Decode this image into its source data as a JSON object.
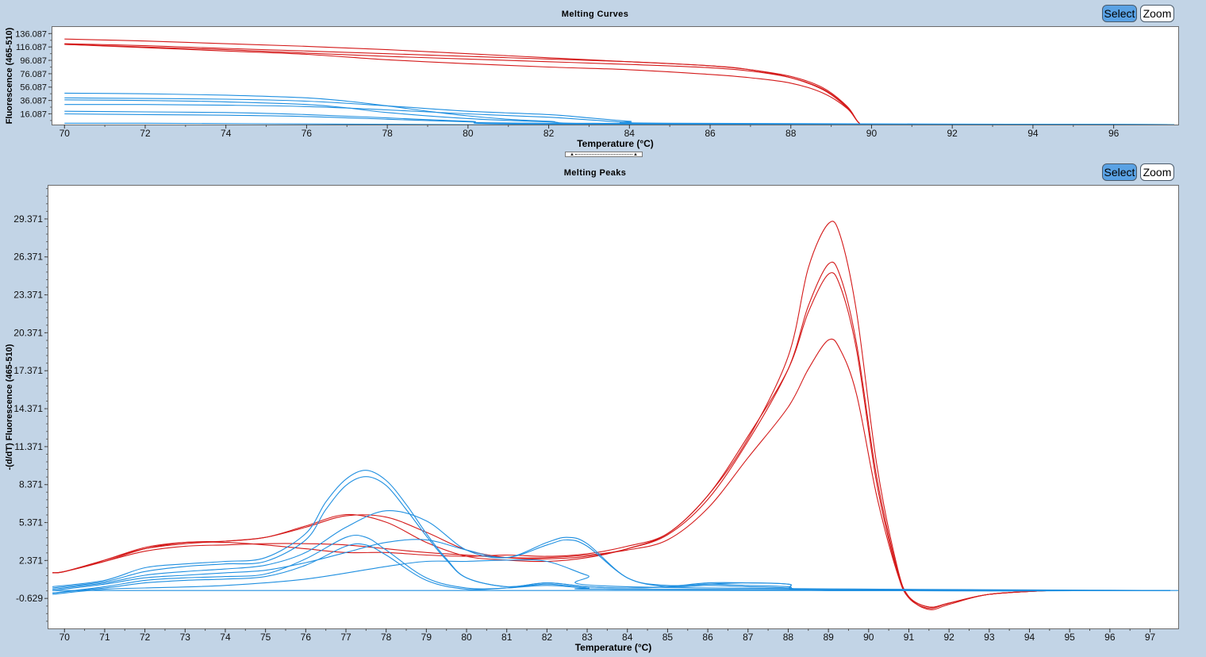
{
  "toolbar": {
    "select_label": "Select",
    "zoom_label": "Zoom"
  },
  "colors": {
    "red": "#d41a1a",
    "blue": "#1f8fe0",
    "background": "#c2d4e6"
  },
  "chart_data": [
    {
      "type": "line",
      "title": "Melting Curves",
      "xlabel": "Temperature (°C)",
      "ylabel": "Fluorescence (465-510)",
      "xlim": [
        69.7,
        97.6
      ],
      "ylim": [
        0,
        146
      ],
      "xticks": [
        70,
        72,
        74,
        76,
        78,
        80,
        82,
        84,
        86,
        88,
        90,
        92,
        94,
        96
      ],
      "yticks": [
        "136.087",
        "116.087",
        "96.087",
        "76.087",
        "56.087",
        "36.087",
        "16.087"
      ],
      "ytick_values": [
        136.087,
        116.087,
        96.087,
        76.087,
        56.087,
        36.087,
        16.087
      ],
      "grid": false,
      "series": [
        {
          "color": "#d41a1a",
          "x": [
            70,
            72,
            74,
            76,
            78,
            80,
            82,
            84,
            86,
            87,
            88,
            88.8,
            89.4,
            89.7,
            90,
            97.5
          ],
          "y": [
            128,
            125,
            121,
            117,
            112,
            106,
            100,
            94,
            88,
            82,
            70,
            52,
            25,
            2,
            0,
            0
          ]
        },
        {
          "color": "#d41a1a",
          "x": [
            70,
            72,
            74,
            76,
            78,
            80,
            82,
            84,
            86,
            87,
            88,
            88.8,
            89.4,
            89.7,
            90,
            97.5
          ],
          "y": [
            121,
            118,
            114,
            110,
            106,
            102,
            98,
            94,
            88,
            82,
            72,
            55,
            27,
            2,
            0,
            0
          ]
        },
        {
          "color": "#d41a1a",
          "x": [
            70,
            72,
            74,
            76,
            78,
            80,
            82,
            84,
            86,
            87,
            88,
            88.8,
            89.4,
            89.7,
            90,
            97.5
          ],
          "y": [
            120,
            116,
            112,
            107,
            102,
            98,
            94,
            90,
            85,
            80,
            70,
            53,
            26,
            2,
            0,
            0
          ]
        },
        {
          "color": "#d41a1a",
          "x": [
            70,
            72,
            74,
            76,
            78,
            80,
            82,
            84,
            86,
            87,
            88,
            88.8,
            89.4,
            89.7,
            90,
            97.5
          ],
          "y": [
            120,
            115,
            110,
            105,
            97,
            91,
            86,
            82,
            75,
            70,
            62,
            47,
            24,
            2,
            0,
            0
          ]
        },
        {
          "color": "#1f8fe0",
          "x": [
            70,
            72,
            74,
            76,
            77,
            78,
            79,
            80,
            81,
            82,
            84,
            97.5
          ],
          "y": [
            47,
            46,
            44,
            40,
            35,
            28,
            20,
            13,
            8,
            5,
            1,
            0
          ]
        },
        {
          "color": "#1f8fe0",
          "x": [
            70,
            72,
            74,
            76,
            77,
            78,
            80,
            82,
            84,
            97.5
          ],
          "y": [
            37,
            36,
            34,
            30,
            25,
            18,
            9,
            4,
            1,
            0
          ]
        },
        {
          "color": "#1f8fe0",
          "x": [
            70,
            72,
            74,
            76,
            78,
            80,
            82,
            83,
            84,
            85,
            97.5
          ],
          "y": [
            40,
            39,
            38,
            35,
            28,
            20,
            15,
            10,
            5,
            2,
            0
          ]
        },
        {
          "color": "#1f8fe0",
          "x": [
            70,
            72,
            74,
            76,
            78,
            80,
            82,
            83,
            84,
            85,
            97.5
          ],
          "y": [
            30,
            30,
            29,
            27,
            22,
            16,
            11,
            7,
            3,
            1,
            0
          ]
        },
        {
          "color": "#1f8fe0",
          "x": [
            70,
            72,
            74,
            76,
            78,
            80,
            82,
            97.5
          ],
          "y": [
            20,
            19,
            18,
            15,
            10,
            5,
            2,
            0
          ]
        },
        {
          "color": "#1f8fe0",
          "x": [
            70,
            72,
            74,
            76,
            78,
            80,
            82,
            97.5
          ],
          "y": [
            16,
            15,
            14,
            12,
            8,
            4,
            1,
            0
          ]
        },
        {
          "color": "#1f8fe0",
          "x": [
            70,
            72,
            76,
            80,
            97.5
          ],
          "y": [
            2,
            2,
            1,
            0,
            0
          ]
        }
      ]
    },
    {
      "type": "line",
      "title": "Melting Peaks",
      "xlabel": "Temperature (°C)",
      "ylabel": "-(d/dT) Fluorescence (465-510)",
      "xlim": [
        69.6,
        97.7
      ],
      "ylim": [
        -3.0,
        32.0
      ],
      "xticks": [
        70,
        71,
        72,
        73,
        74,
        75,
        76,
        77,
        78,
        79,
        80,
        81,
        82,
        83,
        84,
        85,
        86,
        87,
        88,
        89,
        90,
        91,
        92,
        93,
        94,
        95,
        96,
        97
      ],
      "yticks": [
        "29.371",
        "26.371",
        "23.371",
        "20.371",
        "17.371",
        "14.371",
        "11.371",
        "8.371",
        "5.371",
        "2.371",
        "-0.629"
      ],
      "ytick_values": [
        29.371,
        26.371,
        23.371,
        20.371,
        17.371,
        14.371,
        11.371,
        8.371,
        5.371,
        2.371,
        -0.629
      ],
      "grid": false,
      "series": [
        {
          "color": "#d41a1a",
          "x": [
            69.7,
            70,
            71,
            72,
            73,
            74,
            75,
            76,
            77,
            78,
            79,
            80,
            81,
            82,
            83,
            84,
            85,
            86,
            87,
            88,
            88.5,
            89,
            89.3,
            89.7,
            90.2,
            90.7,
            91,
            91.5,
            92,
            93,
            94.5
          ],
          "y": [
            1.4,
            1.5,
            2.4,
            3.4,
            3.8,
            3.8,
            3.6,
            3.3,
            3.0,
            3.0,
            2.8,
            2.7,
            2.8,
            2.7,
            2.9,
            3.5,
            4.5,
            7.5,
            12.0,
            18.5,
            25.5,
            29.0,
            28.0,
            22.0,
            10.0,
            2.0,
            -0.5,
            -1.5,
            -1.1,
            -0.3,
            0.0
          ]
        },
        {
          "color": "#d41a1a",
          "x": [
            69.7,
            70,
            71,
            72,
            73,
            74,
            75,
            76,
            77,
            78,
            79,
            80,
            81,
            82,
            83,
            84,
            85,
            86,
            87,
            88,
            88.5,
            89,
            89.3,
            89.7,
            90.2,
            90.7,
            91,
            91.5,
            92,
            93,
            94.5
          ],
          "y": [
            1.4,
            1.5,
            2.4,
            3.3,
            3.7,
            3.9,
            4.2,
            5.0,
            5.9,
            5.8,
            4.6,
            3.2,
            2.6,
            2.5,
            2.7,
            3.3,
            4.4,
            7.2,
            11.8,
            17.5,
            22.5,
            25.8,
            24.8,
            19.5,
            9.0,
            1.8,
            -0.5,
            -1.3,
            -1.0,
            -0.3,
            0.0
          ]
        },
        {
          "color": "#d41a1a",
          "x": [
            69.7,
            70,
            71,
            72,
            73,
            74,
            75,
            76,
            77,
            78,
            79,
            80,
            81,
            82,
            83,
            84,
            85,
            86,
            87,
            88,
            88.5,
            89,
            89.3,
            89.7,
            90.2,
            90.7,
            91,
            91.5,
            92,
            93,
            94.5
          ],
          "y": [
            1.4,
            1.5,
            2.3,
            3.3,
            3.8,
            3.9,
            4.2,
            5.1,
            6.0,
            5.4,
            3.8,
            2.7,
            2.4,
            2.3,
            2.6,
            3.3,
            4.5,
            7.5,
            12.2,
            17.5,
            22.0,
            25.0,
            24.0,
            19.0,
            8.5,
            1.6,
            -0.6,
            -1.4,
            -1.0,
            -0.3,
            0.0
          ]
        },
        {
          "color": "#d41a1a",
          "x": [
            69.7,
            70,
            71,
            72,
            73,
            74,
            75,
            76,
            77,
            78,
            79,
            80,
            81,
            82,
            83,
            84,
            85,
            86,
            87,
            88,
            88.5,
            89,
            89.3,
            89.7,
            90.2,
            90.7,
            91,
            91.5,
            92,
            93,
            94.5
          ],
          "y": [
            1.4,
            1.5,
            2.3,
            3.1,
            3.5,
            3.6,
            3.7,
            3.7,
            3.6,
            3.3,
            3.0,
            2.8,
            2.6,
            2.6,
            2.8,
            3.2,
            4.0,
            6.5,
            10.5,
            14.5,
            17.5,
            19.8,
            19.0,
            15.5,
            7.5,
            1.5,
            -0.5,
            -1.3,
            -1.0,
            -0.3,
            0.0
          ]
        },
        {
          "color": "#1f8fe0",
          "x": [
            69.7,
            71,
            72,
            73,
            74,
            75,
            76,
            76.5,
            77,
            77.5,
            78,
            78.5,
            79,
            79.5,
            80,
            81,
            82,
            83,
            84,
            85,
            86,
            87,
            88,
            89,
            97.5
          ],
          "y": [
            0.3,
            0.8,
            1.8,
            2.1,
            2.3,
            2.6,
            4.5,
            7.0,
            8.8,
            9.5,
            8.7,
            6.8,
            4.5,
            2.5,
            1.0,
            0.3,
            0.6,
            0.3,
            0.2,
            0.3,
            0.6,
            0.6,
            0.5,
            0.0,
            0.0
          ]
        },
        {
          "color": "#1f8fe0",
          "x": [
            69.7,
            71,
            72,
            73,
            74,
            75,
            76,
            76.5,
            77,
            77.5,
            78,
            78.5,
            79,
            79.5,
            80,
            81,
            82,
            83,
            84,
            85,
            86,
            87,
            88,
            89,
            97.5
          ],
          "y": [
            0.2,
            0.7,
            1.5,
            1.9,
            2.1,
            2.3,
            4.0,
            6.4,
            8.3,
            9.0,
            8.3,
            6.4,
            4.3,
            2.4,
            1.0,
            0.3,
            0.6,
            0.3,
            0.2,
            0.3,
            0.5,
            0.6,
            0.5,
            0.0,
            0.0
          ]
        },
        {
          "color": "#1f8fe0",
          "x": [
            69.7,
            71,
            72,
            73,
            74,
            75,
            76,
            77,
            78,
            79,
            80,
            81,
            82,
            82.5,
            83,
            84,
            85,
            86,
            87,
            88,
            89,
            97.5
          ],
          "y": [
            0.1,
            0.6,
            1.2,
            1.5,
            1.7,
            2.0,
            3.0,
            5.0,
            6.3,
            5.5,
            3.2,
            2.6,
            3.8,
            4.2,
            3.7,
            1.0,
            0.4,
            0.5,
            0.4,
            0.3,
            0.0,
            0.0
          ]
        },
        {
          "color": "#1f8fe0",
          "x": [
            69.7,
            71,
            72,
            73,
            74,
            75,
            76,
            77,
            78,
            79,
            80,
            81,
            82,
            82.5,
            83,
            84,
            85,
            86,
            87,
            88,
            89,
            97.5
          ],
          "y": [
            0.0,
            0.5,
            1.0,
            1.2,
            1.4,
            1.6,
            2.2,
            3.0,
            3.8,
            4.0,
            3.2,
            2.6,
            3.6,
            4.0,
            3.5,
            1.0,
            0.3,
            0.4,
            0.3,
            0.2,
            0.0,
            0.0
          ]
        },
        {
          "color": "#1f8fe0",
          "x": [
            69.7,
            71,
            72,
            73,
            74,
            75,
            76,
            77,
            77.5,
            78,
            79,
            80,
            81,
            82,
            83,
            84,
            97.5
          ],
          "y": [
            -0.2,
            0.3,
            0.8,
            1.0,
            1.1,
            1.3,
            2.5,
            4.2,
            4.2,
            3.2,
            1.0,
            0.2,
            0.2,
            0.5,
            0.2,
            0.1,
            0.0
          ]
        },
        {
          "color": "#1f8fe0",
          "x": [
            69.7,
            71,
            72,
            73,
            74,
            75,
            76,
            77,
            77.5,
            78,
            79,
            80,
            81,
            82,
            83,
            84,
            97.5
          ],
          "y": [
            -0.2,
            0.2,
            0.6,
            0.8,
            0.9,
            1.1,
            2.0,
            3.5,
            3.6,
            2.8,
            0.8,
            0.1,
            0.2,
            0.4,
            0.2,
            0.1,
            0.0
          ]
        },
        {
          "color": "#1f8fe0",
          "x": [
            69.7,
            71,
            72,
            74,
            76,
            78,
            79,
            80,
            81,
            82,
            83,
            84,
            97.5
          ],
          "y": [
            -0.3,
            0.1,
            0.2,
            0.4,
            0.9,
            1.9,
            2.3,
            2.3,
            2.4,
            2.3,
            1.2,
            0.3,
            0.0
          ]
        },
        {
          "color": "#1f8fe0",
          "x": [
            69.7,
            72,
            74,
            76,
            78,
            80,
            82,
            84,
            86,
            88,
            90,
            97.7
          ],
          "y": [
            0.0,
            0.0,
            0.0,
            0.0,
            0.0,
            0.0,
            0.0,
            0.0,
            0.0,
            0.0,
            0.0,
            0.0
          ]
        }
      ]
    }
  ]
}
